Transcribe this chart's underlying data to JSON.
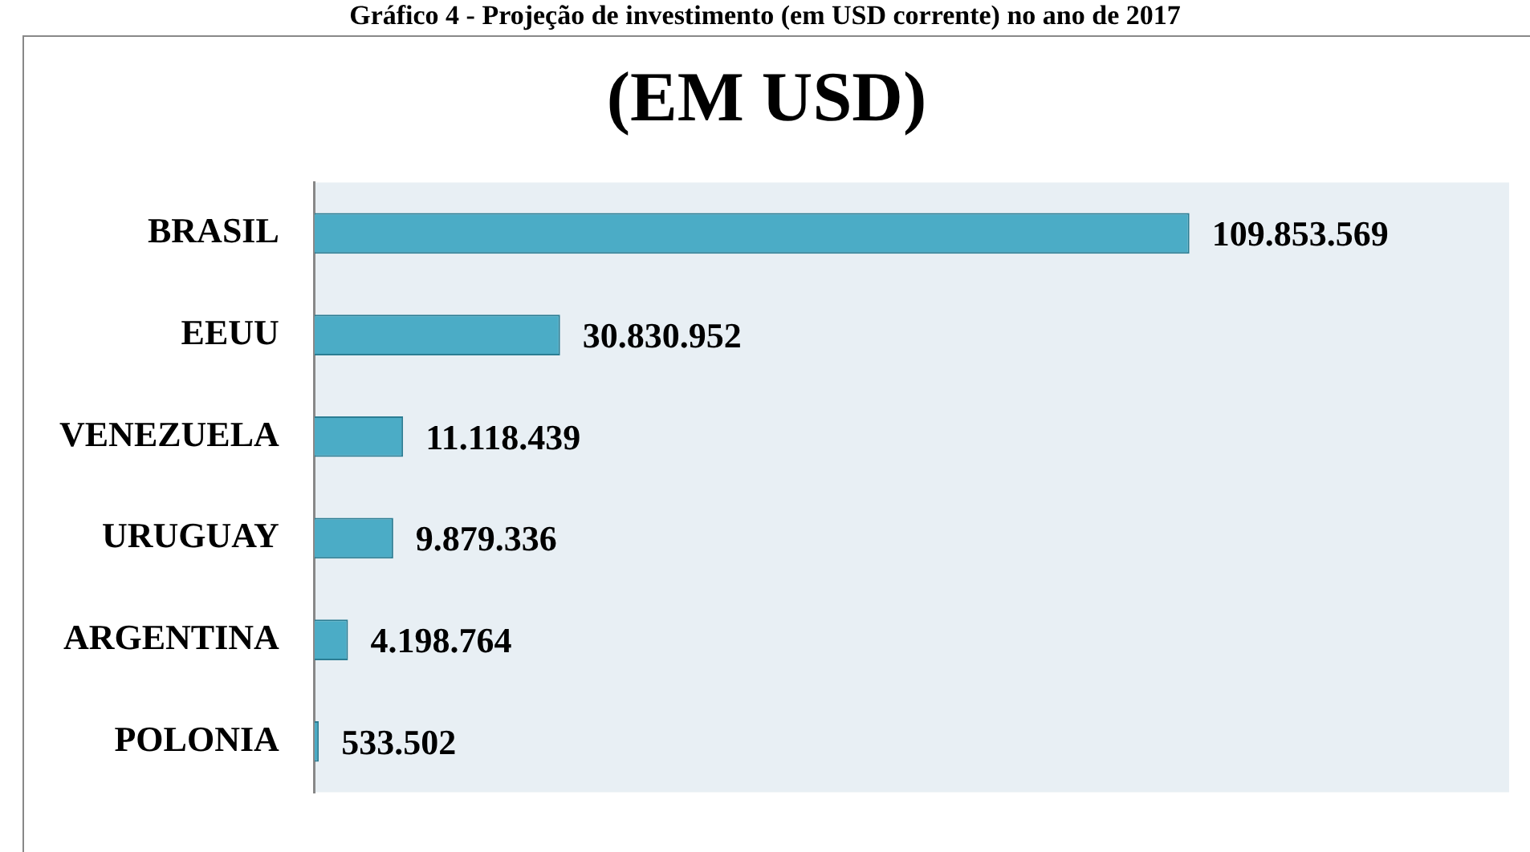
{
  "chart_data": {
    "type": "bar",
    "orientation": "horizontal",
    "title": "(EM USD)",
    "annotations": [
      "Gráfico 4 - Projeção de investimento (em USD corrente) no ano de 2017"
    ],
    "categories": [
      "BRASIL",
      "EEUU",
      "VENEZUELA",
      "URUGUAY",
      "ARGENTINA",
      "POLONIA"
    ],
    "values": [
      109853569,
      30830952,
      11118439,
      9879336,
      4198764,
      533502
    ],
    "value_labels": [
      "109.853.569",
      "30.830.952",
      "11.118.439",
      "9.879.336",
      "4.198.764",
      "533.502"
    ],
    "color": "#4bacc6",
    "xlim": [
      0,
      150000000
    ],
    "tick_labels": "y",
    "grid": false,
    "legend": false
  }
}
